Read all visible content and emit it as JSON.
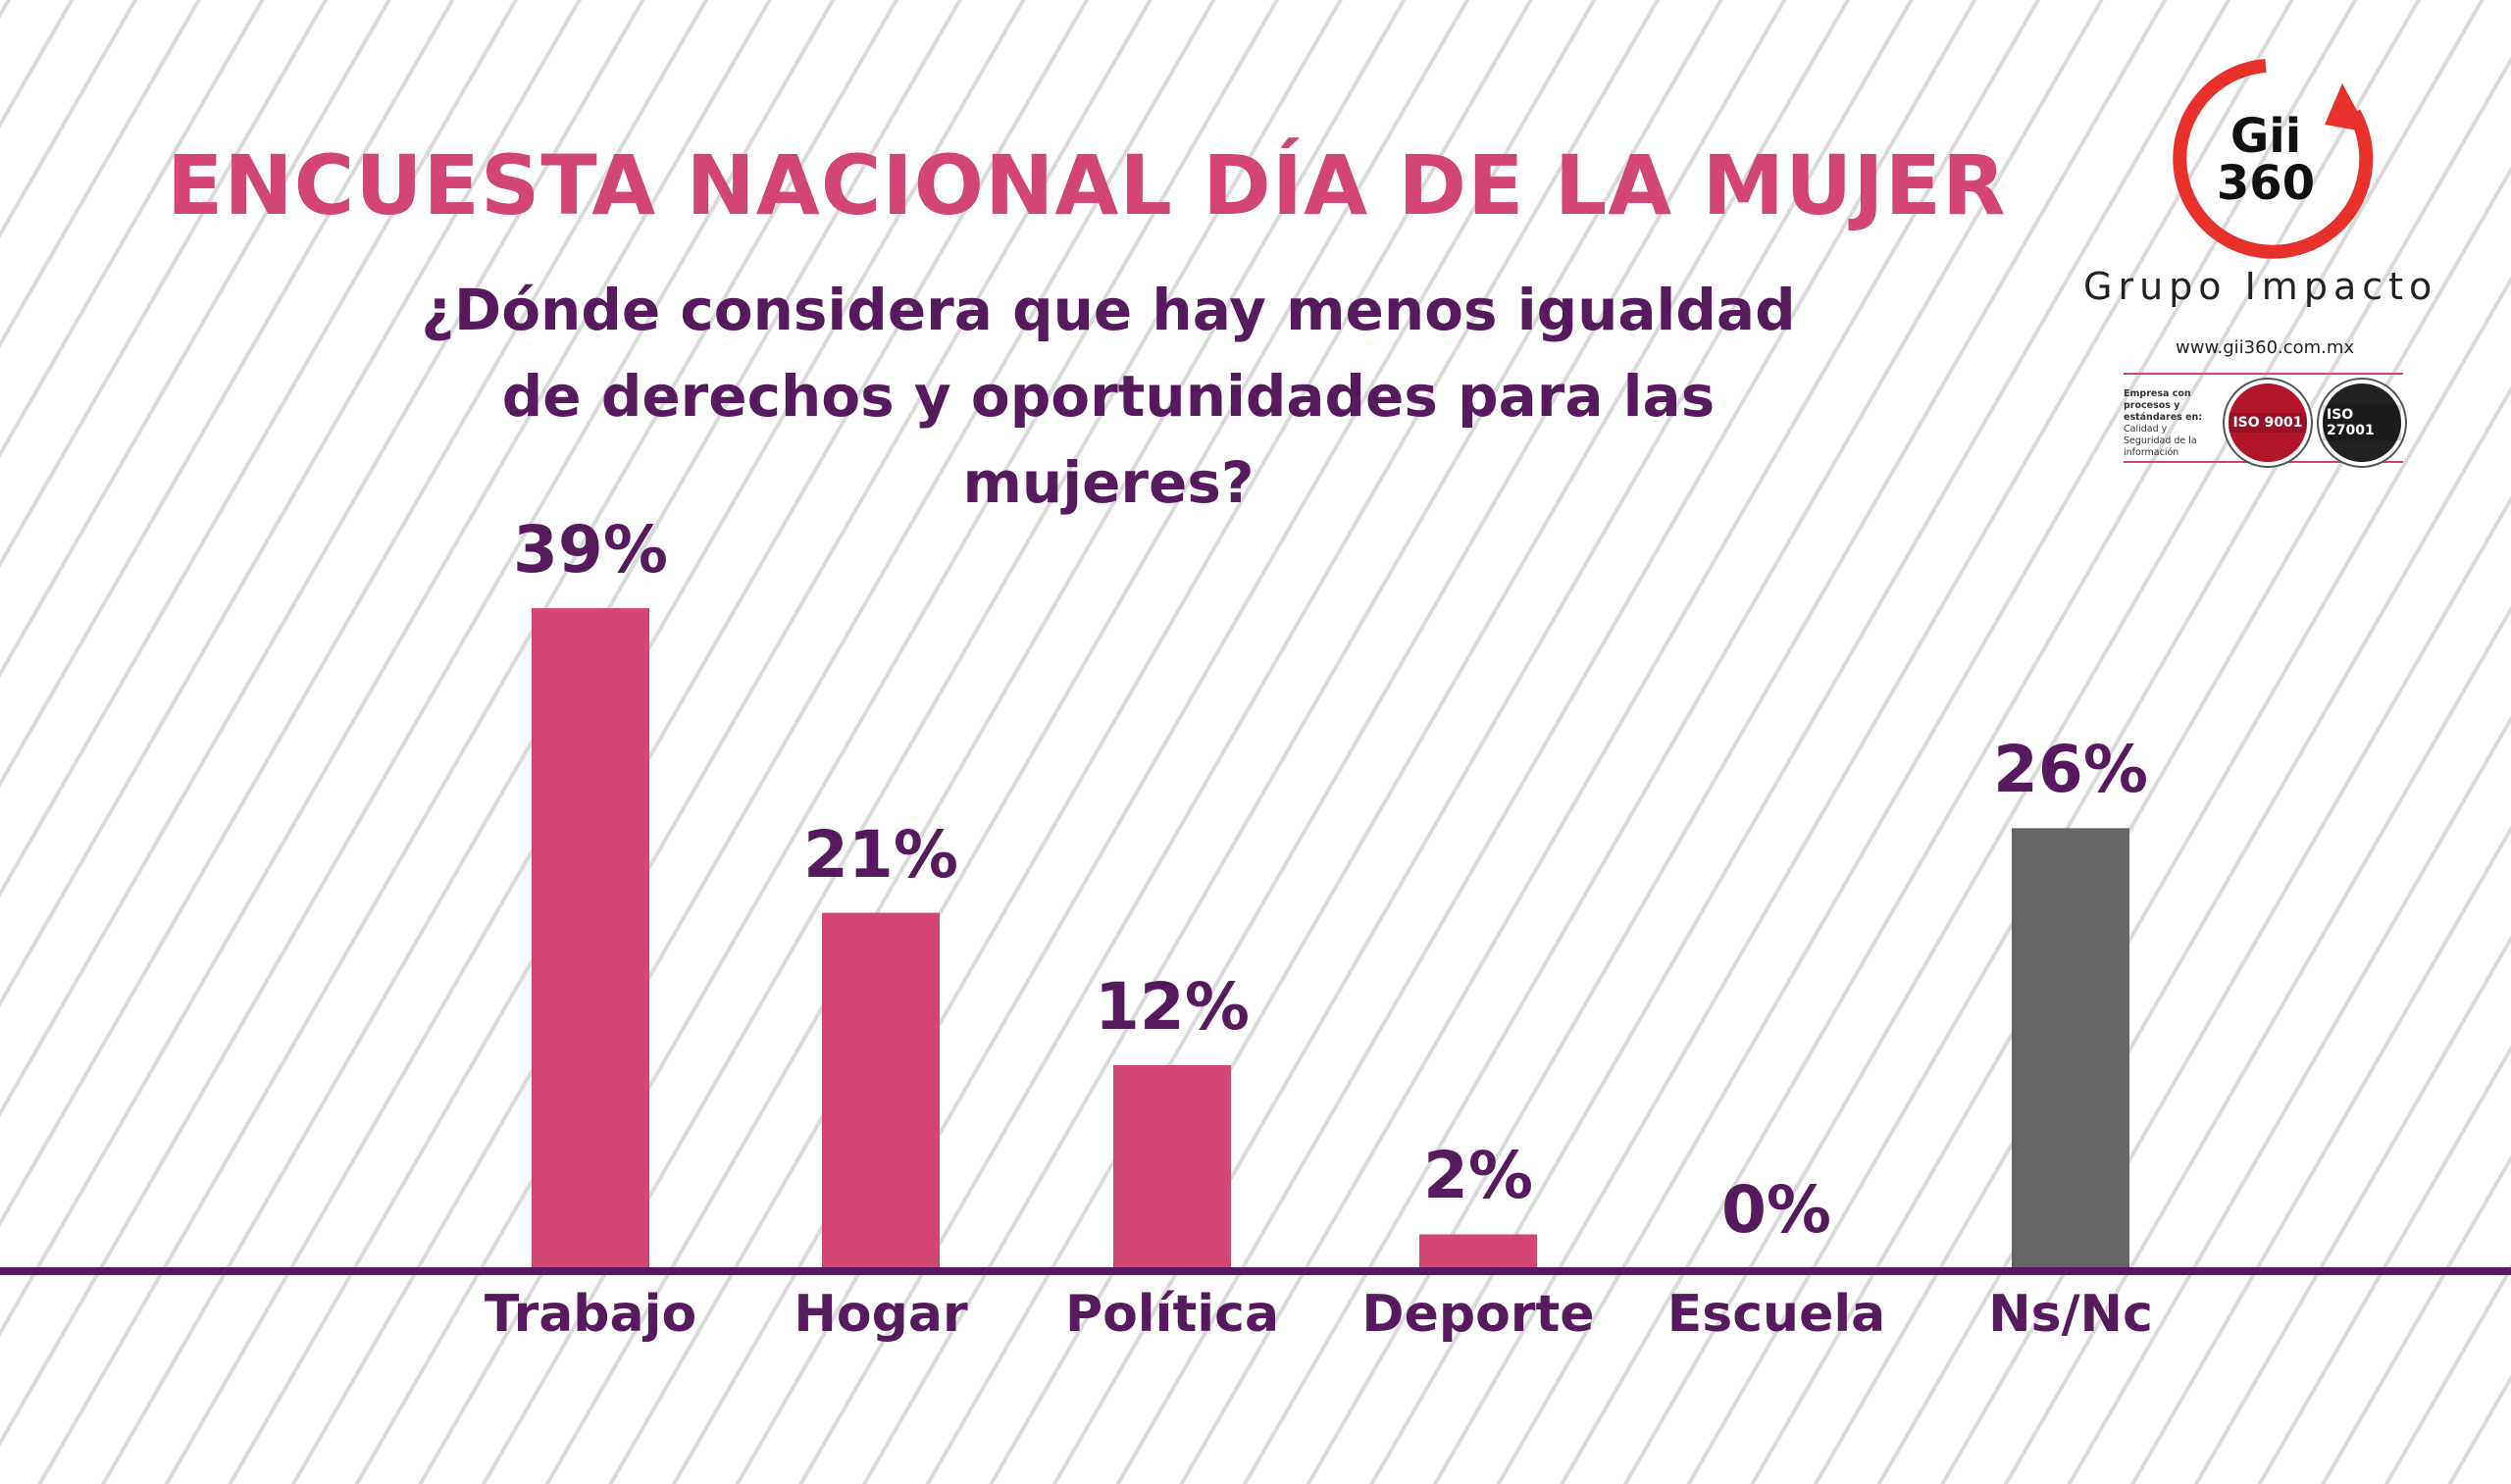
{
  "header": {
    "title": "ENCUESTA NACIONAL DÍA DE LA MUJER",
    "subtitle_line1": "¿Dónde considera que hay menos igualdad",
    "subtitle_line2": "de derechos y oportunidades para las mujeres?"
  },
  "logo": {
    "mark_line1": "Gii",
    "mark_line2": "360",
    "brand": "Grupo Impacto",
    "url": "www.gii360.com.mx",
    "iso_desc_bold": "Empresa con procesos y estándares en:",
    "iso_desc": "Calidad y Seguridad de la información",
    "badges": [
      "ISO 9001",
      "ISO 27001"
    ]
  },
  "colors": {
    "title": "#d34572",
    "bar": "#d34572",
    "bar_nsnc": "#666666",
    "text": "#571a5e",
    "axis": "#571a5e"
  },
  "chart_data": {
    "type": "bar",
    "categories": [
      "Trabajo",
      "Hogar",
      "Política",
      "Deporte",
      "Escuela",
      "Ns/Nc"
    ],
    "values": [
      39,
      21,
      12,
      2,
      0,
      26
    ],
    "value_labels": [
      "39%",
      "21%",
      "12%",
      "2%",
      "0%",
      "26%"
    ],
    "units": "%",
    "title": "",
    "xlabel": "",
    "ylabel": "",
    "ylim": [
      0,
      39
    ],
    "grid": false,
    "legend": "none"
  }
}
